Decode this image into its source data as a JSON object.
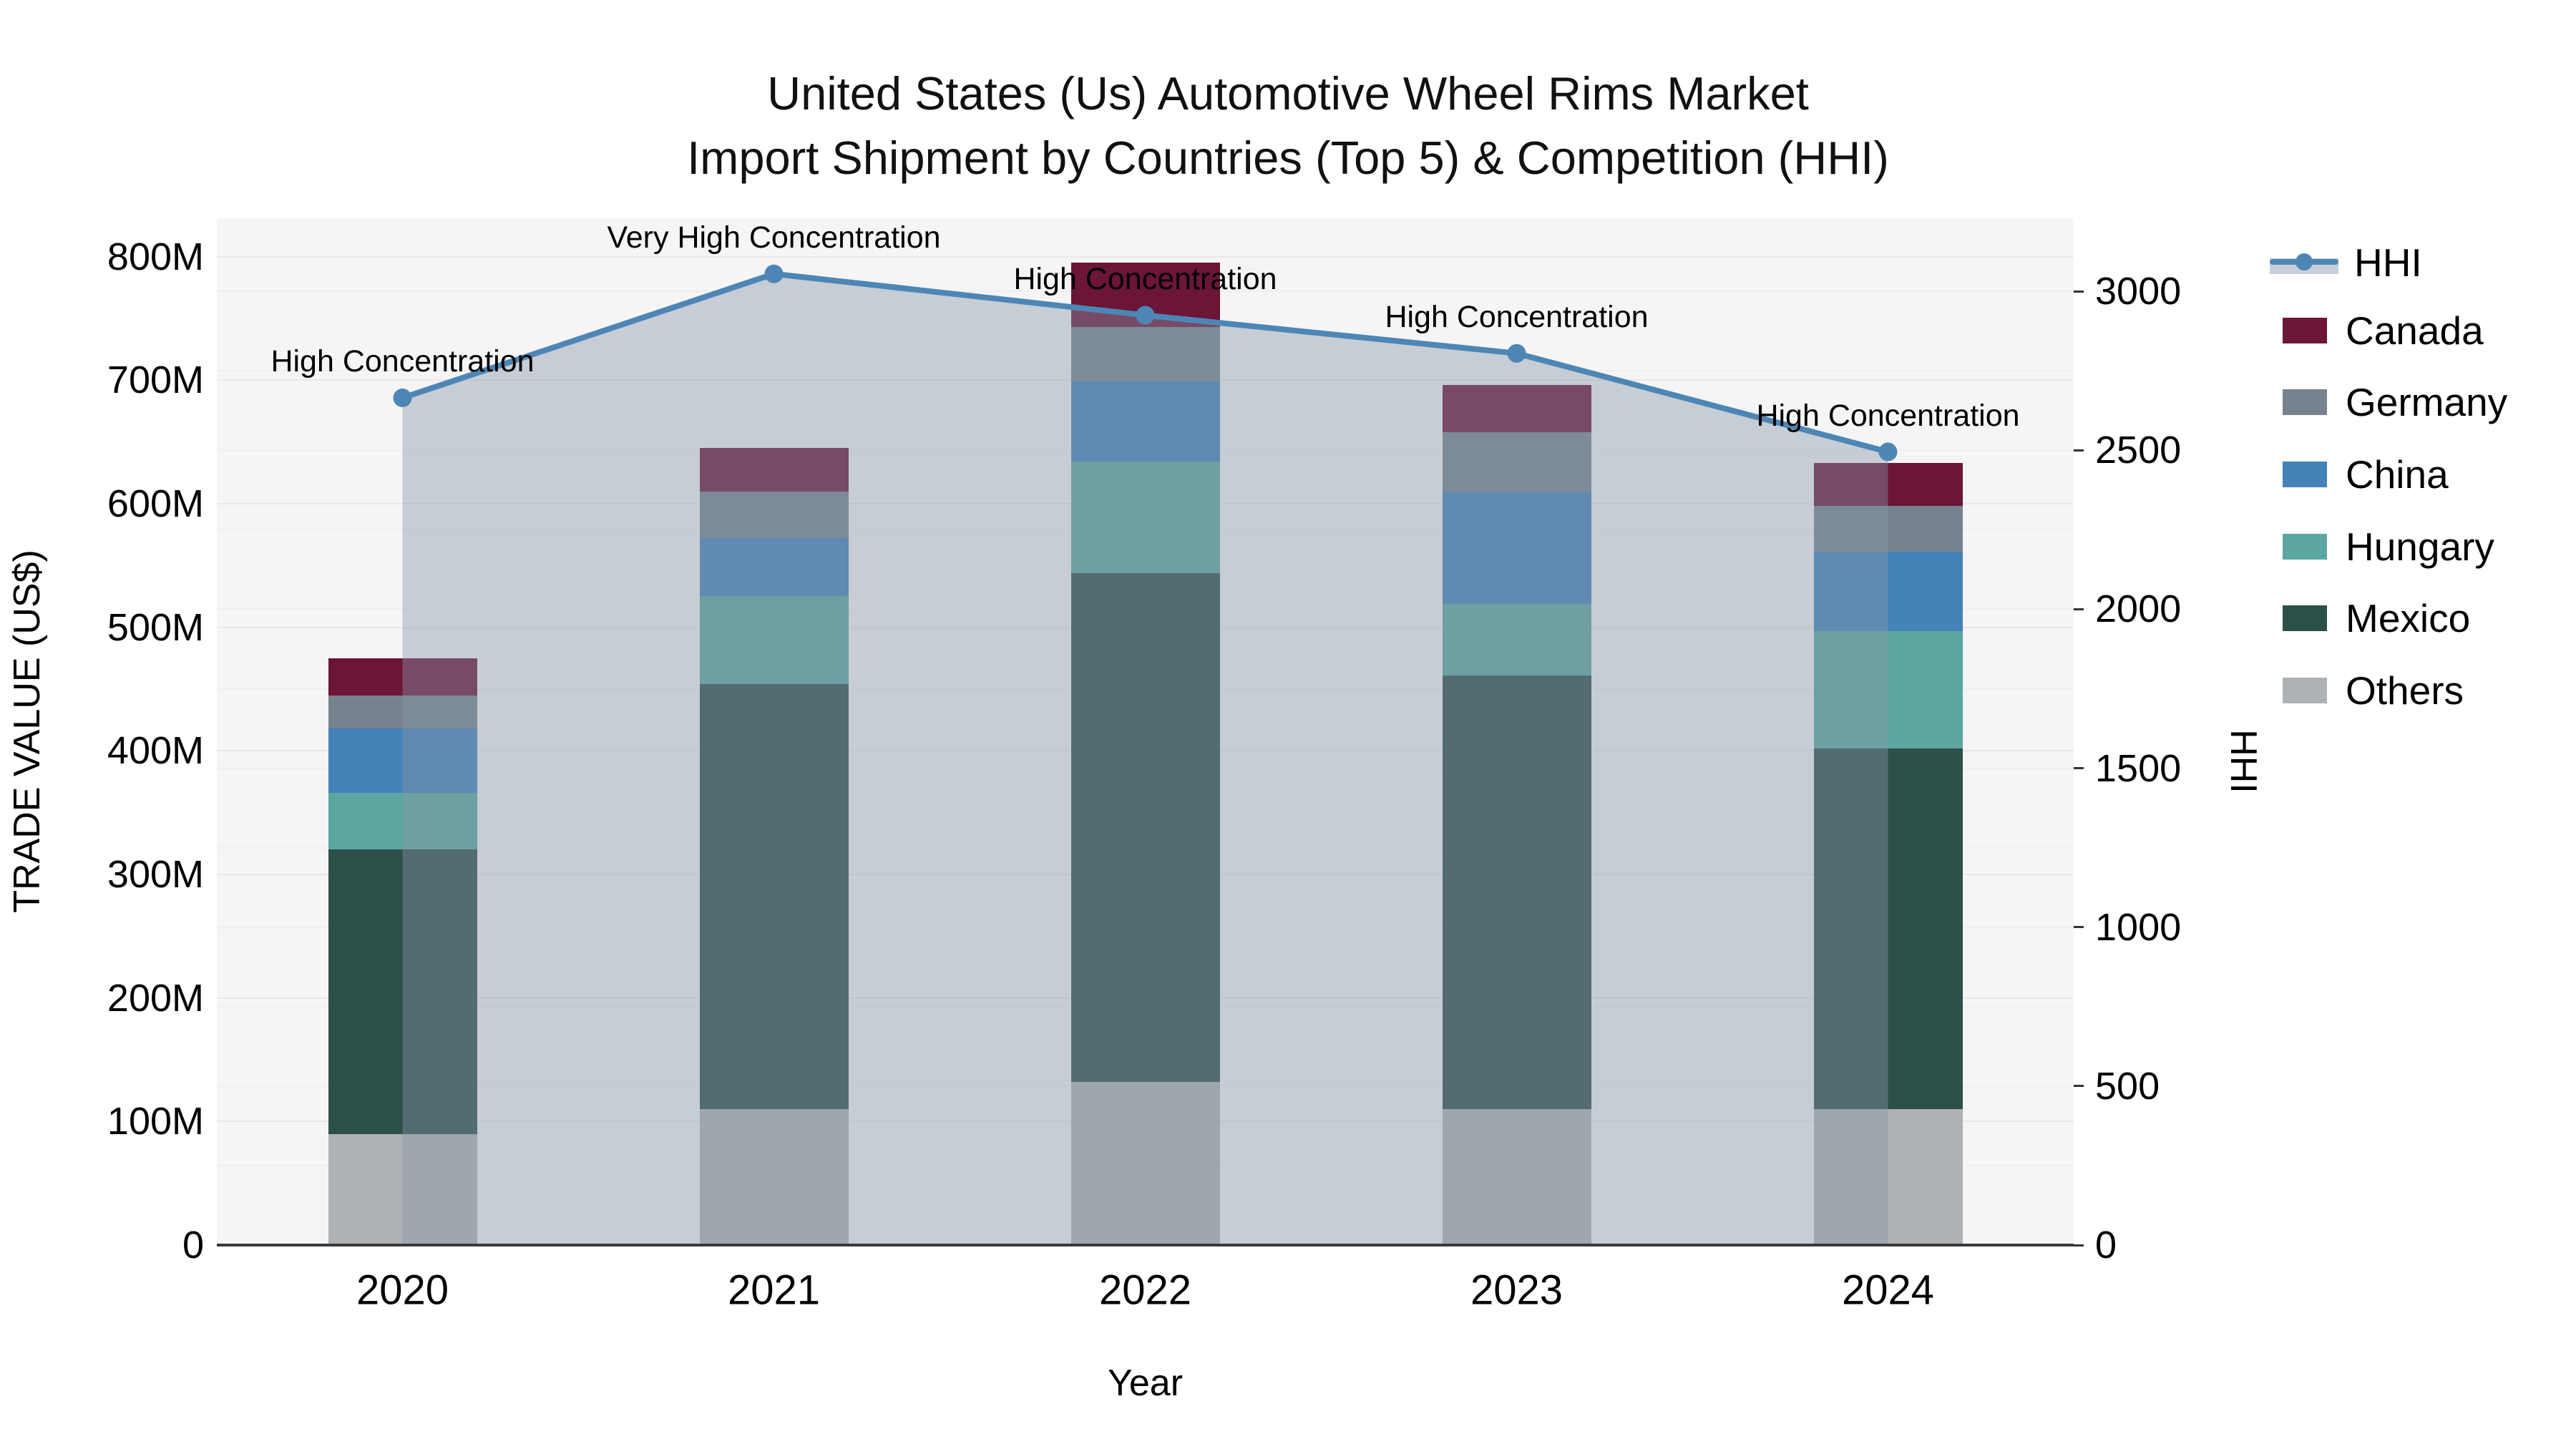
{
  "title": {
    "line1": "United States (Us) Automotive Wheel Rims Market",
    "line2": "Import Shipment by Countries (Top 5) & Competition (HHI)"
  },
  "chart_data": {
    "type": "combo-stacked-bar-line",
    "categories": [
      "2020",
      "2021",
      "2022",
      "2023",
      "2024"
    ],
    "x_axis_label": "Year",
    "left_axis": {
      "label": "TRADE VALUE (US$)",
      "tick_labels": [
        "0",
        "100M",
        "200M",
        "300M",
        "400M",
        "500M",
        "600M",
        "700M",
        "800M"
      ],
      "tick_values_musd": [
        0,
        100,
        200,
        300,
        400,
        500,
        600,
        700,
        800
      ],
      "range_musd": [
        0,
        831
      ]
    },
    "right_axis": {
      "label": "HHI",
      "tick_labels": [
        "0",
        "500",
        "1000",
        "1500",
        "2000",
        "2500",
        "3000"
      ],
      "tick_values": [
        0,
        500,
        1000,
        1500,
        2000,
        2500,
        3000
      ],
      "range": [
        0,
        3230
      ],
      "minor_grid_step": 250
    },
    "bar_series_bottom_to_top": [
      {
        "name": "Others",
        "color": "#AFB2B4",
        "values_musd": [
          90,
          110,
          132,
          110,
          110
        ]
      },
      {
        "name": "Mexico",
        "color": "#2D4F4A",
        "values_musd": [
          230,
          344,
          412,
          351,
          292
        ]
      },
      {
        "name": "Hungary",
        "color": "#5CA6A1",
        "values_musd": [
          46,
          71,
          90,
          58,
          95
        ]
      },
      {
        "name": "China",
        "color": "#4482B8",
        "values_musd": [
          52,
          47,
          65,
          90,
          64
        ]
      },
      {
        "name": "Germany",
        "color": "#76838F",
        "values_musd": [
          27,
          38,
          44,
          49,
          37
        ]
      },
      {
        "name": "Canada",
        "color": "#6B1537",
        "values_musd": [
          30,
          35,
          52,
          38,
          35
        ]
      }
    ],
    "bar_totals_musd": [
      475,
      645,
      795,
      696,
      633
    ],
    "line_series": {
      "name": "HHI",
      "color": "#4D86B5",
      "area_fill": "rgba(136,149,168,0.42)",
      "values": [
        2665,
        3055,
        2925,
        2805,
        2495
      ]
    },
    "annotations": [
      {
        "category": "2020",
        "text": "High Concentration"
      },
      {
        "category": "2021",
        "text": "Very High Concentration"
      },
      {
        "category": "2022",
        "text": "High Concentration"
      },
      {
        "category": "2023",
        "text": "High Concentration"
      },
      {
        "category": "2024",
        "text": "High Concentration"
      }
    ]
  },
  "legend": {
    "items": [
      {
        "label": "HHI",
        "type": "line",
        "color": "#4D86B5"
      },
      {
        "label": "Canada",
        "type": "box",
        "color": "#6B1537"
      },
      {
        "label": "Germany",
        "type": "box",
        "color": "#76838F"
      },
      {
        "label": "China",
        "type": "box",
        "color": "#4482B8"
      },
      {
        "label": "Hungary",
        "type": "box",
        "color": "#5CA6A1"
      },
      {
        "label": "Mexico",
        "type": "box",
        "color": "#2D4F4A"
      },
      {
        "label": "Others",
        "type": "box",
        "color": "#AFB2B4"
      }
    ]
  }
}
